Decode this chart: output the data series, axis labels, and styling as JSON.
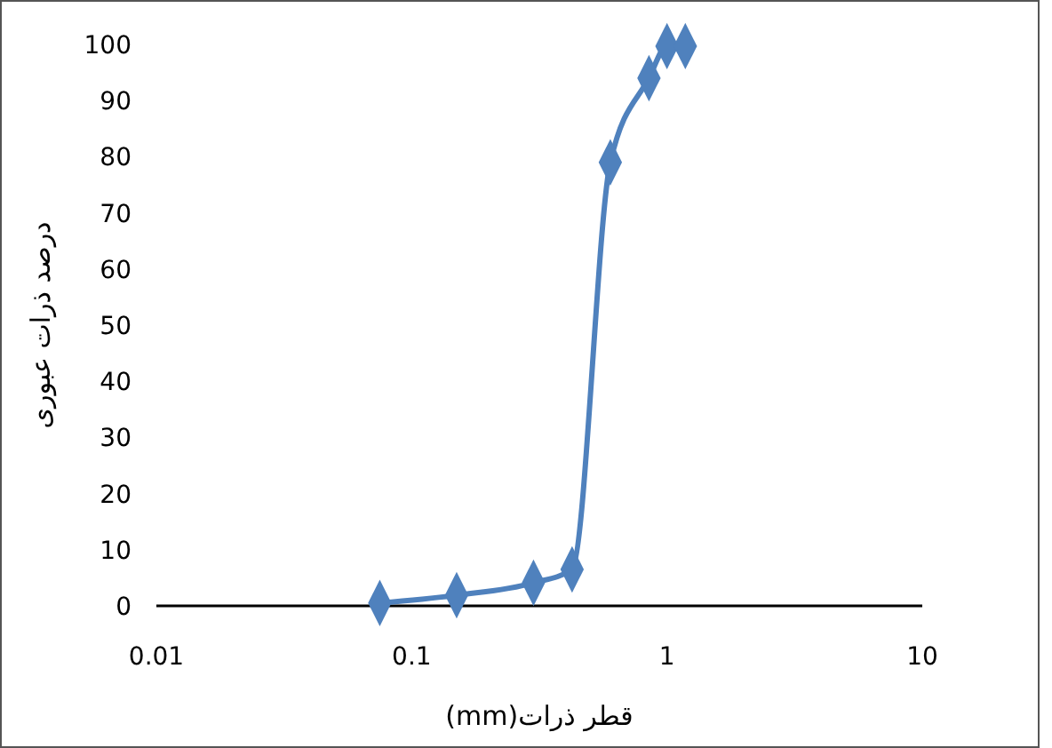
{
  "chart_data": {
    "type": "line",
    "xlabel": "قطر ذرات(mm)",
    "ylabel": "درصد ذرات عبوری",
    "log": "x",
    "x": [
      0.075,
      0.15,
      0.3,
      0.425,
      0.6,
      0.85,
      1,
      1.18
    ],
    "series": [
      {
        "color": "#4f81bd",
        "values": [
          0.5,
          1.9,
          4.1,
          6.5,
          79,
          94,
          99.7,
          99.7
        ]
      }
    ],
    "xlim": [
      0.01,
      10
    ],
    "xticks": [
      0.01,
      0.1,
      1,
      10
    ],
    "ylim": [
      0,
      100
    ],
    "yticks": [
      0,
      10,
      20,
      30,
      40,
      50,
      60,
      70,
      80,
      90,
      100
    ],
    "marker": "diamond",
    "line_style": "solid"
  }
}
